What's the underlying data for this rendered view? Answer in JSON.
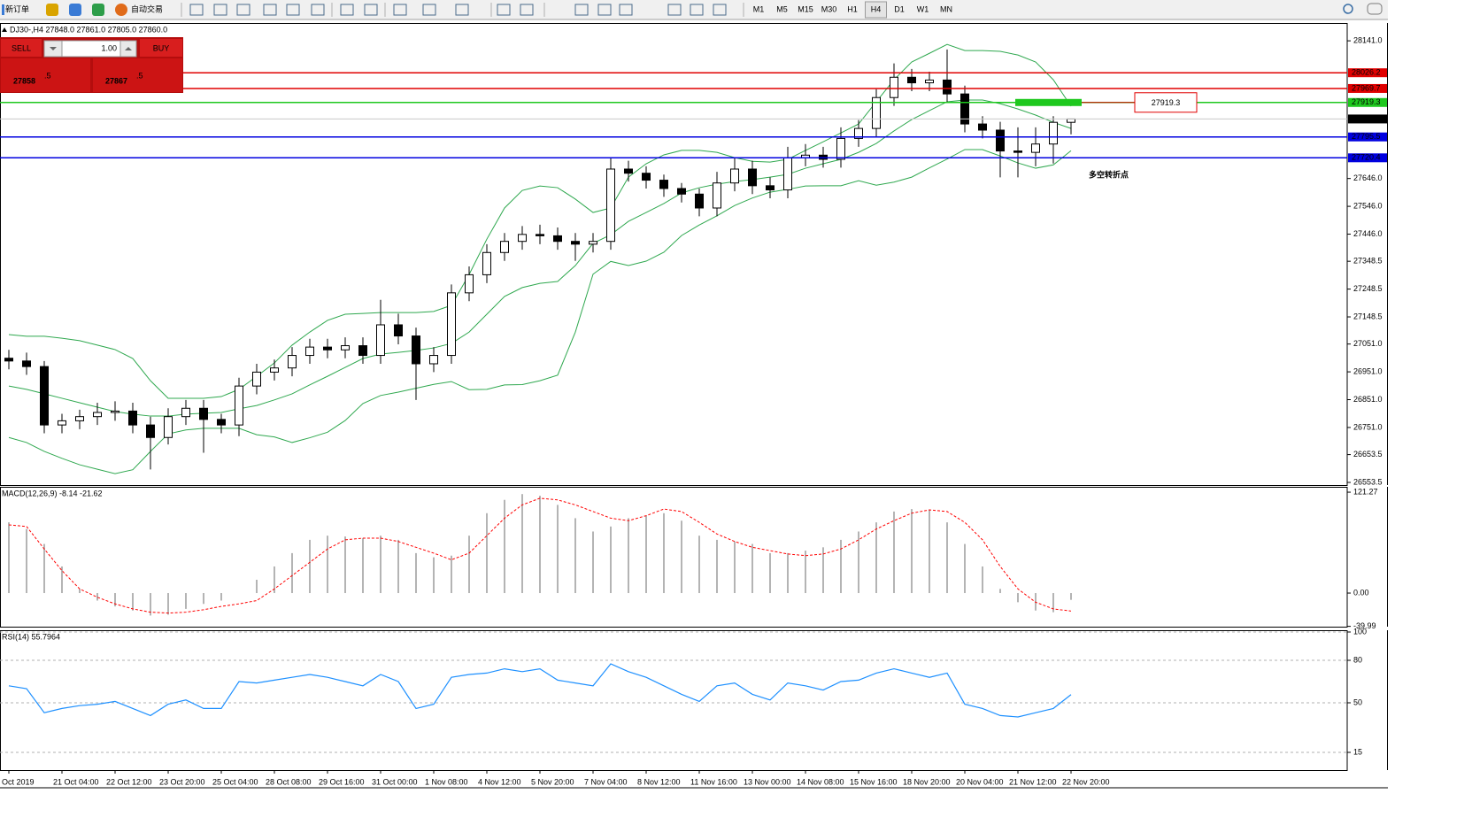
{
  "toolbar": {
    "new_order": "新订单",
    "auto_trading": "自动交易",
    "timeframes": [
      "M1",
      "M5",
      "M15",
      "M30",
      "H1",
      "H4",
      "D1",
      "W1",
      "MN"
    ],
    "active_timeframe": "H4"
  },
  "trade_panel": {
    "sell": "SELL",
    "buy": "BUY",
    "lot": "1.00",
    "sell_price": "27858",
    "sell_price_tail": ".5",
    "buy_price": "27867",
    "buy_price_tail": ".5"
  },
  "chart_data": [
    {
      "type": "candlestick",
      "title": "DJ30-,H4 27848.0 27861.0 27805.0 27860.0",
      "categories": [
        "Oct 2019",
        null,
        null,
        "21 Oct 04:00",
        null,
        null,
        "22 Oct 12:00",
        null,
        null,
        "23 Oct 20:00",
        null,
        null,
        "25 Oct 04:00",
        null,
        null,
        "28 Oct 08:00",
        null,
        null,
        "29 Oct 16:00",
        null,
        null,
        "31 Oct 00:00",
        null,
        null,
        "1 Nov 08:00",
        null,
        null,
        "4 Nov 12:00",
        null,
        null,
        "5 Nov 20:00",
        null,
        null,
        "7 Nov 04:00",
        null,
        null,
        "8 Nov 12:00",
        null,
        null,
        "11 Nov 16:00",
        null,
        null,
        "13 Nov 00:00",
        null,
        null,
        "14 Nov 08:00",
        null,
        null,
        "15 Nov 16:00",
        null,
        null,
        "18 Nov 20:00",
        null,
        null,
        "20 Nov 04:00",
        null,
        null,
        "21 Nov 12:00",
        null,
        null,
        "22 Nov 20:00"
      ],
      "open": [
        27000,
        26990,
        26970,
        26760,
        26775,
        26790,
        26805,
        26810,
        26760,
        26715,
        26790,
        26820,
        26780,
        26760,
        26900,
        26950,
        26965,
        27010,
        27040,
        27030,
        27045,
        27010,
        27120,
        27080,
        26980,
        27010,
        27235,
        27300,
        27380,
        27420,
        27445,
        27440,
        27420,
        27410,
        27420,
        27680,
        27665,
        27640,
        27610,
        27590,
        27540,
        27630,
        27680,
        27620,
        27605,
        27720,
        27730,
        27715,
        27790,
        27826,
        27937,
        28010,
        27990,
        28000,
        27950,
        27842,
        27820,
        27745,
        27740,
        27770,
        27848
      ],
      "high": [
        27030,
        27020,
        26990,
        26800,
        26815,
        26840,
        26845,
        26840,
        26790,
        26820,
        26850,
        26850,
        26800,
        26930,
        26980,
        26995,
        27040,
        27070,
        27070,
        27075,
        27075,
        27210,
        27160,
        27110,
        27040,
        27265,
        27330,
        27410,
        27450,
        27475,
        27480,
        27470,
        27450,
        27450,
        27720,
        27710,
        27690,
        27660,
        27630,
        27610,
        27670,
        27720,
        27710,
        27650,
        27760,
        27770,
        27760,
        27830,
        27856,
        27967,
        28060,
        28040,
        28030,
        28110,
        27980,
        27870,
        27850,
        27830,
        27830,
        27870,
        27861
      ],
      "low": [
        26960,
        26940,
        26730,
        26730,
        26745,
        26760,
        26775,
        26730,
        26600,
        26690,
        26760,
        26660,
        26730,
        26720,
        26870,
        26920,
        26935,
        26980,
        27000,
        27000,
        26980,
        26980,
        27050,
        26850,
        26950,
        26980,
        27205,
        27270,
        27350,
        27390,
        27410,
        27390,
        27350,
        27380,
        27390,
        27635,
        27610,
        27580,
        27560,
        27510,
        27510,
        27600,
        27590,
        27575,
        27575,
        27690,
        27685,
        27685,
        27760,
        27796,
        27907,
        27960,
        27960,
        27920,
        27812,
        27790,
        27650,
        27650,
        27690,
        27700,
        27805
      ],
      "close": [
        26990,
        26970,
        26760,
        26775,
        26790,
        26805,
        26810,
        26760,
        26715,
        26790,
        26820,
        26780,
        26760,
        26900,
        26950,
        26965,
        27010,
        27040,
        27030,
        27045,
        27010,
        27120,
        27080,
        26980,
        27010,
        27235,
        27300,
        27380,
        27420,
        27445,
        27440,
        27420,
        27410,
        27420,
        27680,
        27665,
        27640,
        27610,
        27590,
        27540,
        27630,
        27680,
        27620,
        27605,
        27720,
        27730,
        27715,
        27790,
        27826,
        27937,
        28010,
        27990,
        28000,
        27950,
        27842,
        27820,
        27745,
        27740,
        27770,
        27848,
        27860
      ],
      "up_color": "#ffffff",
      "down_color": "#000000",
      "bands": {
        "color": "#2fa84f",
        "upper": [
          27085,
          27079,
          27079,
          27072,
          27063,
          27047,
          27031,
          26999,
          26919,
          26856,
          26856,
          26856,
          26862,
          26888,
          26935,
          26983,
          27047,
          27094,
          27136,
          27158,
          27161,
          27164,
          27164,
          27164,
          27168,
          27190,
          27301,
          27428,
          27540,
          27603,
          27619,
          27613,
          27572,
          27524,
          27540,
          27651,
          27699,
          27731,
          27747,
          27747,
          27740,
          27721,
          27708,
          27705,
          27715,
          27747,
          27778,
          27810,
          27842,
          27922,
          28001,
          28065,
          28096,
          28128,
          28106,
          28106,
          28103,
          28090,
          28065,
          28001,
          27906
        ],
        "middle": [
          26900,
          26888,
          26872,
          26856,
          26840,
          26824,
          26808,
          26799,
          26792,
          26792,
          26799,
          26802,
          26805,
          26818,
          26830,
          26850,
          26872,
          26904,
          26935,
          26967,
          26999,
          27015,
          27021,
          27028,
          27037,
          27053,
          27094,
          27158,
          27222,
          27254,
          27269,
          27276,
          27333,
          27413,
          27444,
          27492,
          27524,
          27556,
          27594,
          27613,
          27626,
          27635,
          27642,
          27651,
          27661,
          27683,
          27699,
          27715,
          27740,
          27772,
          27817,
          27858,
          27890,
          27922,
          27928,
          27928,
          27915,
          27896,
          27874,
          27848,
          27826
        ],
        "lower": [
          26715,
          26697,
          26665,
          26640,
          26617,
          26601,
          26585,
          26599,
          26665,
          26728,
          26742,
          26748,
          26748,
          26748,
          26725,
          26717,
          26697,
          26714,
          26734,
          26776,
          26837,
          26866,
          26878,
          26892,
          26906,
          26916,
          26887,
          26888,
          26904,
          26905,
          26919,
          26939,
          27094,
          27302,
          27348,
          27333,
          27349,
          27381,
          27441,
          27479,
          27512,
          27549,
          27576,
          27597,
          27607,
          27619,
          27620,
          27620,
          27638,
          27622,
          27633,
          27651,
          27684,
          27716,
          27750,
          27750,
          27727,
          27702,
          27683,
          27695,
          27746
        ]
      },
      "levels": [
        {
          "value": 28026.2,
          "label": "28026.2",
          "color": "#e00000"
        },
        {
          "value": 27969.7,
          "label": "27969.7",
          "color": "#e00000"
        },
        {
          "value": 27919.3,
          "label": "27919.3",
          "color": "#1ec81e",
          "callout": true
        },
        {
          "value": 27860.0,
          "label": "27860.0",
          "color": "#c8c8c8",
          "box_color": "#000000"
        },
        {
          "value": 27795.5,
          "label": "27795.5",
          "color": "#0000e0"
        },
        {
          "value": 27720.4,
          "label": "27720.4",
          "color": "#0000e0"
        }
      ],
      "annotations": [
        {
          "text": "多空转折点",
          "color": "#22b822"
        }
      ],
      "ylim": [
        26544,
        28205
      ],
      "yticks": [
        {
          "value": 28141,
          "label": "28141.0"
        },
        {
          "value": 27646,
          "label": "27646.0"
        },
        {
          "value": 27546,
          "label": "27546.0"
        },
        {
          "value": 27446,
          "label": "27446.0"
        },
        {
          "value": 27348.5,
          "label": "27348.5"
        },
        {
          "value": 27248.5,
          "label": "27248.5"
        },
        {
          "value": 27148.5,
          "label": "27148.5"
        },
        {
          "value": 27051,
          "label": "27051.0"
        },
        {
          "value": 26951,
          "label": "26951.0"
        },
        {
          "value": 26851,
          "label": "26851.0"
        },
        {
          "value": 26751,
          "label": "26751.0"
        },
        {
          "value": 26653.5,
          "label": "26653.5"
        },
        {
          "value": 26553.5,
          "label": "26553.5"
        }
      ]
    },
    {
      "type": "macd",
      "title": "MACD(12,26,9) -8.14 -21.62",
      "series": [
        {
          "color": "#b4b4b4",
          "values": [
            85,
            77,
            59,
            32,
            5,
            -9,
            -16,
            -21,
            -27,
            -26,
            -19,
            -13,
            -9,
            0,
            16,
            32,
            48,
            64,
            69,
            68,
            66,
            69,
            64,
            48,
            43,
            45,
            69,
            96,
            112,
            119,
            117,
            106,
            90,
            74,
            80,
            90,
            93,
            96,
            87,
            69,
            64,
            62,
            59,
            48,
            48,
            51,
            55,
            64,
            74,
            85,
            98,
            101,
            100,
            85,
            59,
            32,
            5,
            -11,
            -21,
            -23,
            -8.14
          ]
        },
        {
          "color": "#ff0000",
          "values": [
            82,
            80,
            53,
            27,
            5,
            -5,
            -13,
            -19,
            -23,
            -24,
            -23,
            -20,
            -16,
            -13,
            -9,
            5,
            21,
            37,
            53,
            64,
            66,
            66,
            62,
            55,
            48,
            40,
            48,
            69,
            90,
            106,
            114,
            112,
            106,
            98,
            90,
            87,
            93,
            101,
            98,
            85,
            71,
            62,
            55,
            51,
            47,
            45,
            47,
            53,
            64,
            77,
            87,
            96,
            100,
            98,
            85,
            64,
            32,
            5,
            -11,
            -19,
            -21.62
          ]
        }
      ],
      "ylim": [
        -40.4,
        127.7
      ],
      "yticks": [
        {
          "value": 121.27,
          "label": "121.27"
        },
        {
          "value": 0,
          "label": "0.00"
        },
        {
          "value": -39.99,
          "label": "-39.99"
        }
      ]
    },
    {
      "type": "line",
      "title": "RSI(14) 55.7964",
      "color": "#1e90ff",
      "values": [
        62,
        60,
        43,
        46,
        48,
        49,
        51,
        46,
        41,
        49,
        52,
        46,
        46,
        65,
        64,
        66,
        68,
        70,
        68,
        65,
        62,
        70,
        65,
        46,
        49,
        68,
        70,
        71,
        74,
        72,
        74,
        66,
        64,
        62,
        77.5,
        72,
        68,
        62,
        56,
        51,
        62,
        64,
        56,
        52,
        64,
        62,
        59,
        65,
        66,
        71,
        74,
        71,
        68,
        71,
        49,
        46,
        41,
        40,
        43,
        46,
        55.7964
      ],
      "ylim": [
        2.5,
        101.25
      ],
      "yticks": [
        100,
        80,
        50,
        15
      ],
      "grid": true
    }
  ]
}
